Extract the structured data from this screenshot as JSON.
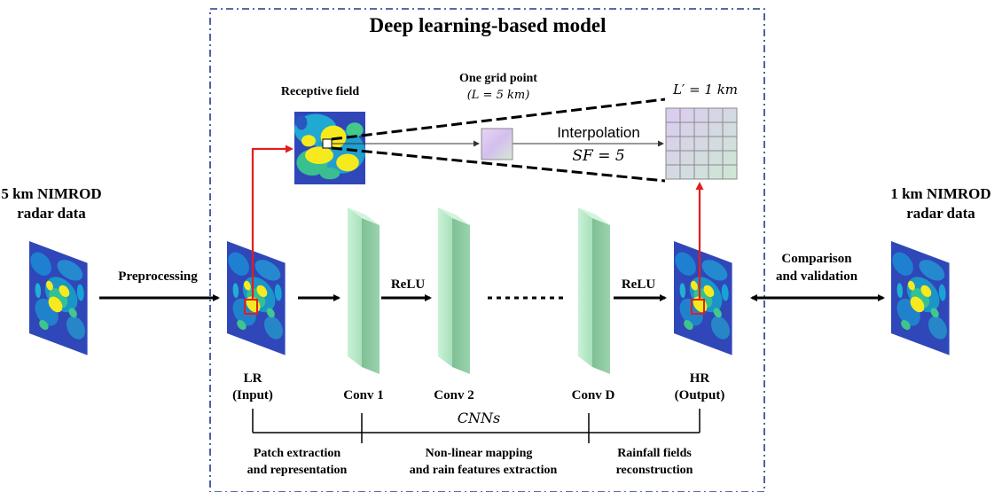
{
  "title": "Deep learning-based model",
  "input": {
    "line1": "5 km NIMROD",
    "line2": "radar data"
  },
  "output": {
    "line1": "1 km NIMROD",
    "line2": "radar data"
  },
  "receptive_field": "Receptive field",
  "grid_point": {
    "line1": "One grid point",
    "line2": "(L = 5 km)"
  },
  "l_prime": "L′ = 1 km",
  "interpolation": "Interpolation",
  "scale_factor": "SF = 5",
  "preprocessing": "Preprocessing",
  "relu_1": "ReLU",
  "relu_2": "ReLU",
  "comparison": {
    "line1": "Comparison",
    "line2": "and validation"
  },
  "lr": {
    "line1": "LR",
    "line2": "(Input)"
  },
  "hr": {
    "line1": "HR",
    "line2": "(Output)"
  },
  "conv_1": "Conv 1",
  "conv_2": "Conv 2",
  "conv_d": "Conv D",
  "cnns": "CNNs",
  "stage_1": {
    "line1": "Patch extraction",
    "line2": "and representation"
  },
  "stage_2": {
    "line1": "Non-linear mapping",
    "line2": "and rain features extraction"
  },
  "stage_3": {
    "line1": "Rainfall fields",
    "line2": "reconstruction"
  },
  "colors": {
    "frame": "#1f3c88",
    "arrow_red": "#e31d1d",
    "conv_green": "#b9ebc9",
    "grid_purple": "#d8c2ee",
    "grid_green": "#cfead8",
    "radar_bg": "#2f47b8",
    "radar_yellow": "#f6ea1e"
  }
}
